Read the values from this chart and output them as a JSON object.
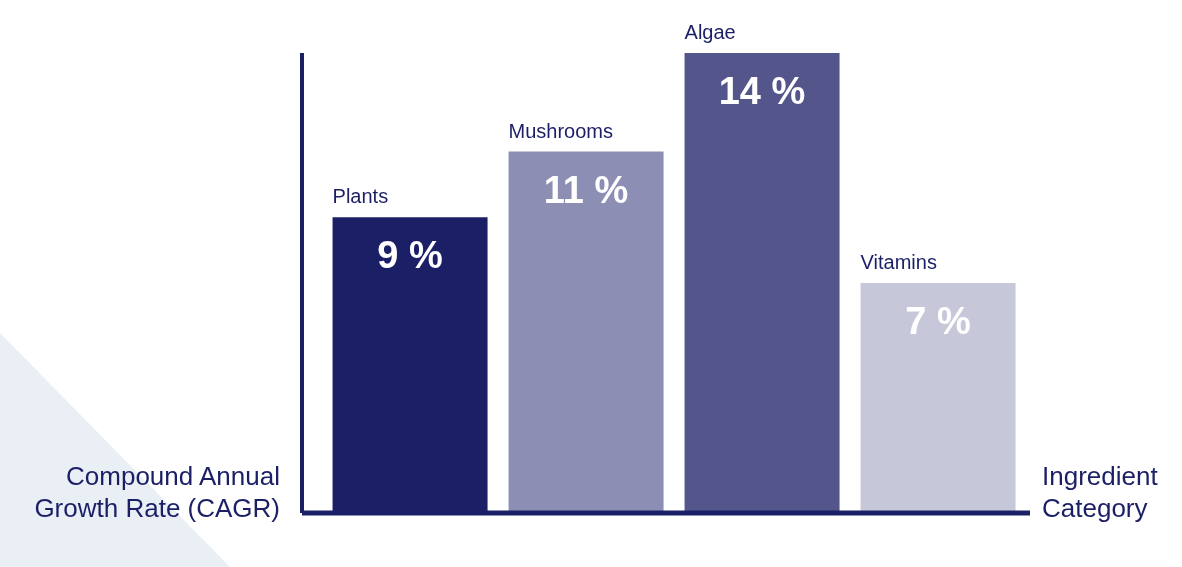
{
  "chart_data": {
    "type": "bar",
    "xlabel": "Ingredient Category",
    "ylabel": "Compound Annual Growth Rate (CAGR)",
    "categories": [
      "Plants",
      "Mushrooms",
      "Algae",
      "Vitamins"
    ],
    "values": [
      9,
      11,
      14,
      7
    ],
    "colors": [
      "#1b1f66",
      "#8c8fb3",
      "#53558b",
      "#c6c7d9"
    ],
    "value_labels": [
      "9 %",
      "11 %",
      "14 %",
      "7 %"
    ],
    "relative": false,
    "grid": false,
    "legend": false
  }
}
